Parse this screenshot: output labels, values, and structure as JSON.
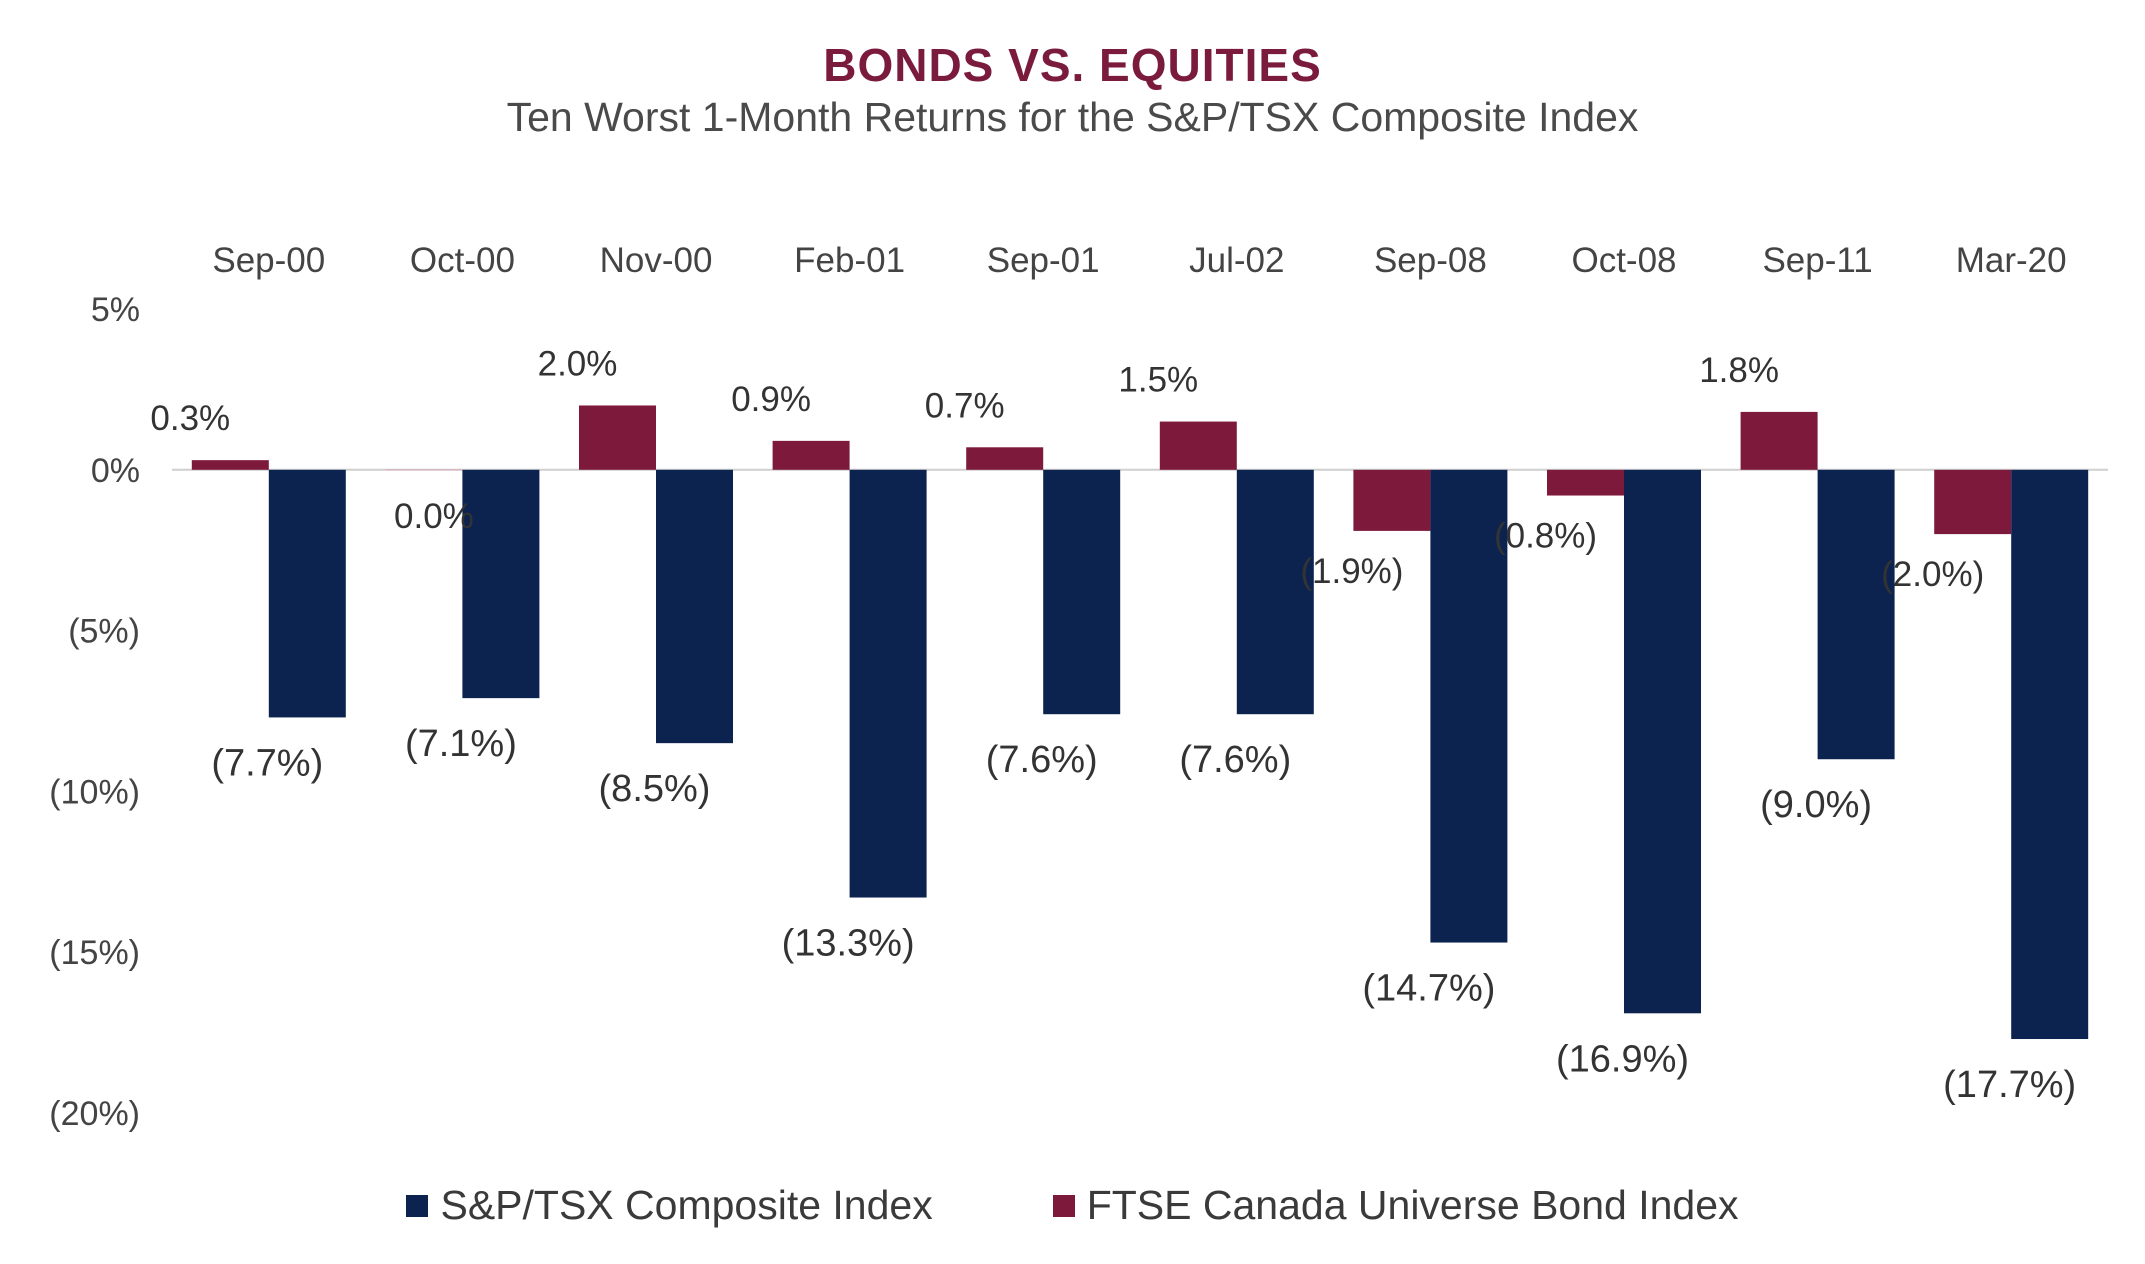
{
  "title": "BONDS VS. EQUITIES",
  "subtitle": "Ten Worst 1-Month Returns for the S&P/TSX Composite Index",
  "colors": {
    "equity": "#0c2350",
    "bond": "#7d1a3b",
    "title": "#7a1a3c",
    "zero_line": "#cfcfcf"
  },
  "chart_data": {
    "type": "bar",
    "categories": [
      "Sep-00",
      "Oct-00",
      "Nov-00",
      "Feb-01",
      "Sep-01",
      "Jul-02",
      "Sep-08",
      "Oct-08",
      "Sep-11",
      "Mar-20"
    ],
    "series": [
      {
        "name": "FTSE Canada Universe Bond Index",
        "values": [
          0.3,
          0.0,
          2.0,
          0.9,
          0.7,
          1.5,
          -1.9,
          -0.8,
          1.8,
          -2.0
        ],
        "labels": [
          "0.3%",
          "0.0%",
          "2.0%",
          "0.9%",
          "0.7%",
          "1.5%",
          "(1.9%)",
          "(0.8%)",
          "1.8%",
          "(2.0%)"
        ]
      },
      {
        "name": "S&P/TSX Composite Index",
        "values": [
          -7.7,
          -7.1,
          -8.5,
          -13.3,
          -7.6,
          -7.6,
          -14.7,
          -16.9,
          -9.0,
          -17.7
        ],
        "labels": [
          "(7.7%)",
          "(7.1%)",
          "(8.5%)",
          "(13.3%)",
          "(7.6%)",
          "(7.6%)",
          "(14.7%)",
          "(16.9%)",
          "(9.0%)",
          "(17.7%)"
        ]
      }
    ],
    "ylim": [
      -20,
      5
    ],
    "yticks": [
      5,
      0,
      -5,
      -10,
      -15,
      -20
    ],
    "ytick_labels": [
      "5%",
      "0%",
      "(5%)",
      "(10%)",
      "(15%)",
      "(20%)"
    ],
    "category_axis": "top",
    "grid": false,
    "legend_position": "bottom"
  },
  "legend": {
    "items": [
      "S&P/TSX Composite Index",
      "FTSE Canada Universe Bond Index"
    ]
  }
}
